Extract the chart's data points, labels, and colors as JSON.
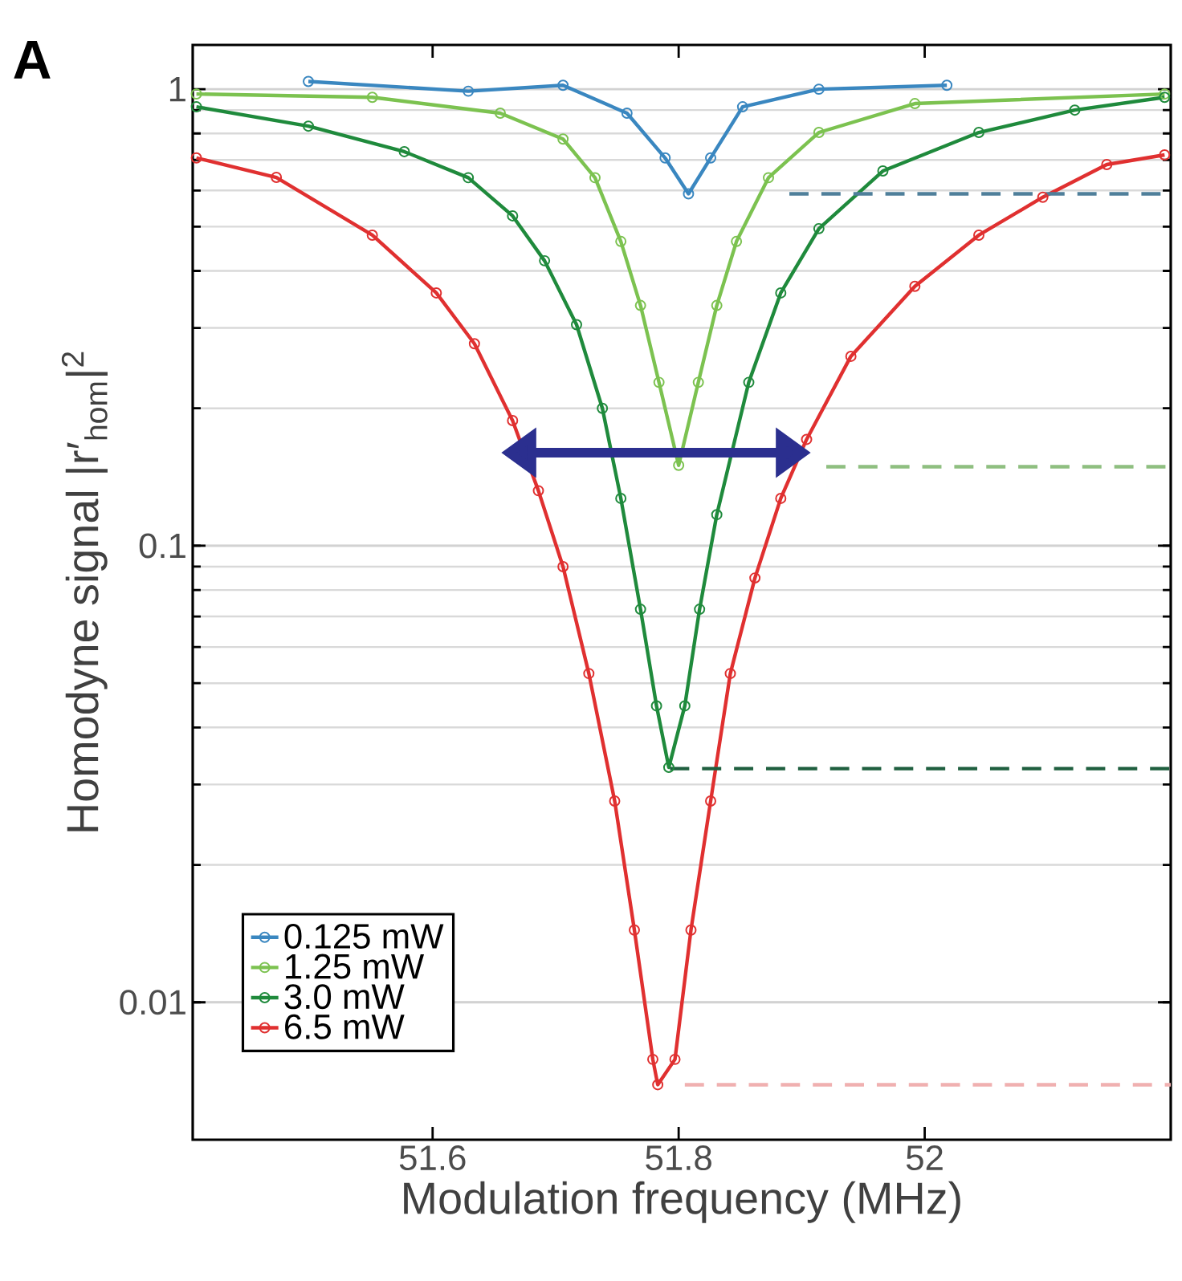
{
  "chart_data": {
    "type": "line",
    "title": "A",
    "xlabel": "Modulation frequency (MHz)",
    "ylabel": "Homodyne signal |r′$_{hom}$|$^{2}$",
    "xlim": [
      51.405,
      52.2
    ],
    "ylim": [
      0.005,
      1.25
    ],
    "log": "y",
    "grid": "y",
    "legend": "bottom left",
    "marker": "circle",
    "xticks": [
      51.6,
      51.8,
      52
    ],
    "yticks": [
      {
        "value": 0.01,
        "label": "0.01"
      },
      {
        "value": 0.1,
        "label": "0.1"
      },
      {
        "value": 1,
        "label": "1"
      }
    ],
    "series": [
      {
        "name": "0.125 mW",
        "color": "#3a87c0",
        "x": [
          51.499,
          51.629,
          51.706,
          51.758,
          51.789,
          51.808,
          51.826,
          51.852,
          51.914,
          52.018
        ],
        "values": [
          1.04,
          0.99,
          1.02,
          0.886,
          0.707,
          0.59,
          0.707,
          0.915,
          1.0,
          1.02
        ]
      },
      {
        "name": "1.25 mW",
        "color": "#7cc250",
        "x": [
          51.408,
          51.551,
          51.655,
          51.706,
          51.732,
          51.753,
          51.769,
          51.784,
          51.8,
          51.816,
          51.831,
          51.847,
          51.873,
          51.914,
          51.992,
          52.195
        ],
        "values": [
          0.976,
          0.96,
          0.886,
          0.778,
          0.64,
          0.464,
          0.336,
          0.228,
          0.15,
          0.228,
          0.336,
          0.464,
          0.64,
          0.804,
          0.93,
          0.976
        ]
      },
      {
        "name": "3.0 mW",
        "color": "#1f8a3c",
        "x": [
          51.408,
          51.499,
          51.577,
          51.629,
          51.665,
          51.691,
          51.717,
          51.738,
          51.753,
          51.769,
          51.782,
          51.792,
          51.805,
          51.817,
          51.831,
          51.857,
          51.883,
          51.914,
          51.966,
          52.044,
          52.122,
          52.195
        ],
        "values": [
          0.915,
          0.83,
          0.73,
          0.64,
          0.528,
          0.421,
          0.305,
          0.2,
          0.127,
          0.0726,
          0.0446,
          0.0327,
          0.0446,
          0.0726,
          0.117,
          0.228,
          0.358,
          0.495,
          0.662,
          0.804,
          0.9,
          0.96
        ]
      },
      {
        "name": "6.5 mW",
        "color": "#e03030",
        "x": [
          51.408,
          51.473,
          51.551,
          51.603,
          51.634,
          51.665,
          51.686,
          51.706,
          51.727,
          51.748,
          51.764,
          51.779,
          51.783,
          51.797,
          51.81,
          51.826,
          51.842,
          51.862,
          51.883,
          51.904,
          51.94,
          51.992,
          52.044,
          52.096,
          52.148,
          52.195
        ],
        "values": [
          0.707,
          0.641,
          0.479,
          0.358,
          0.277,
          0.188,
          0.132,
          0.09,
          0.0525,
          0.0276,
          0.0144,
          0.0075,
          0.0066,
          0.0075,
          0.0144,
          0.0276,
          0.0525,
          0.085,
          0.127,
          0.171,
          0.26,
          0.37,
          0.479,
          0.58,
          0.684,
          0.718
        ]
      },
      {
        "type": "line",
        "color": "#4f7f9a",
        "line_style": "dashed",
        "marker": "none",
        "x": [
          51.89,
          52.2
        ],
        "values": [
          0.59,
          0.59
        ]
      },
      {
        "type": "line",
        "color": "#8fbf80",
        "line_style": "dashed",
        "marker": "none",
        "x": [
          51.92,
          52.2
        ],
        "values": [
          0.149,
          0.149
        ]
      },
      {
        "type": "line",
        "color": "#1f5f3f",
        "line_style": "dashed",
        "marker": "none",
        "x": [
          51.793,
          52.2
        ],
        "values": [
          0.0325,
          0.0325
        ]
      },
      {
        "type": "line",
        "color": "#f0b0b0",
        "line_style": "dashed",
        "marker": "none",
        "x": [
          51.805,
          52.2
        ],
        "values": [
          0.0066,
          0.0066
        ]
      }
    ]
  }
}
